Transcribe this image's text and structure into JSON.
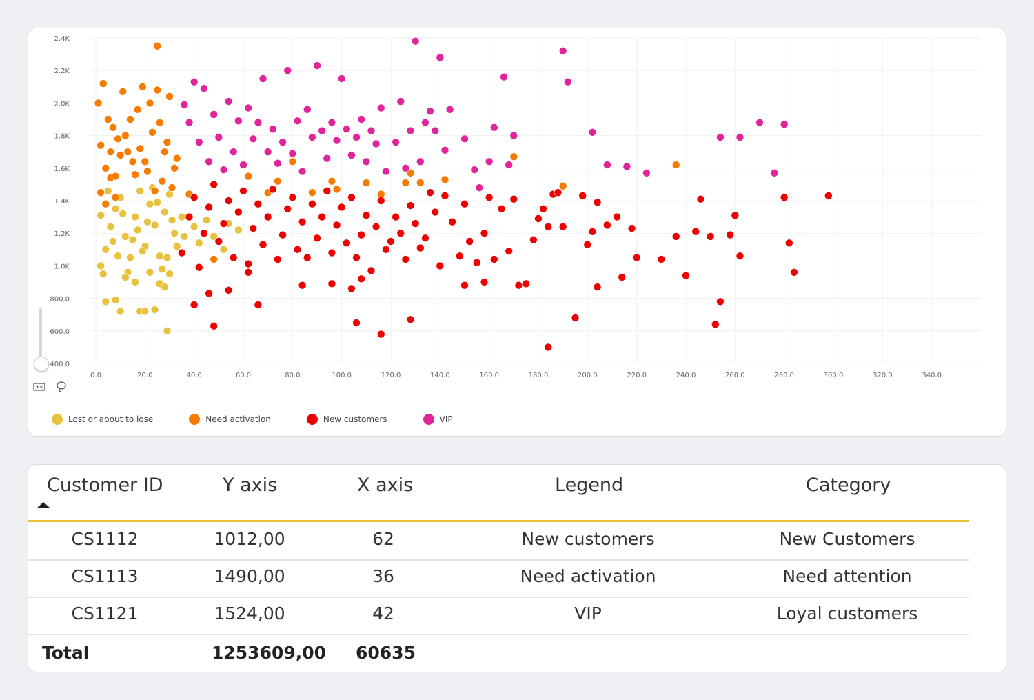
{
  "colors": {
    "lost": "#e8c13f",
    "need_activation": "#f57c00",
    "new_customers": "#ee0000",
    "vip": "#e0249a",
    "accent": "#e8be37"
  },
  "chart": {
    "zoom_icon": "zoom-to-fit-icon",
    "lasso_icon": "lasso-select-icon"
  },
  "chart_data": {
    "type": "scatter",
    "xlim": [
      0,
      360
    ],
    "ylim": [
      400,
      2400
    ],
    "x_ticks": [
      "0.0",
      "20.0",
      "40.0",
      "60.0",
      "80.0",
      "100.0",
      "120.0",
      "140.0",
      "160.0",
      "180.0",
      "200.0",
      "220.0",
      "240.0",
      "260.0",
      "280.0",
      "300.0",
      "320.0",
      "340.0"
    ],
    "y_ticks": [
      "400.0",
      "600.0",
      "800.0",
      "1.0K",
      "1.2K",
      "1.4K",
      "1.6K",
      "1.8K",
      "2.0K",
      "2.2K",
      "2.4K"
    ],
    "legend_position": "bottom-left",
    "grid": true,
    "series": [
      {
        "name": "Lost or about to lose",
        "color_key": "lost",
        "points": [
          [
            2,
            1000
          ],
          [
            4,
            1100
          ],
          [
            6,
            1240
          ],
          [
            8,
            1350
          ],
          [
            10,
            1420
          ],
          [
            12,
            1180
          ],
          [
            14,
            1050
          ],
          [
            16,
            1300
          ],
          [
            18,
            1460
          ],
          [
            20,
            1120
          ],
          [
            22,
            1380
          ],
          [
            24,
            1250
          ],
          [
            26,
            1060
          ],
          [
            28,
            1330
          ],
          [
            30,
            1440
          ],
          [
            32,
            1200
          ],
          [
            3,
            950
          ],
          [
            9,
            1060
          ],
          [
            15,
            1160
          ],
          [
            21,
            1270
          ],
          [
            27,
            980
          ],
          [
            33,
            1120
          ],
          [
            5,
            1460
          ],
          [
            11,
            1320
          ],
          [
            17,
            1220
          ],
          [
            23,
            1480
          ],
          [
            29,
            1050
          ],
          [
            35,
            1300
          ],
          [
            7,
            1150
          ],
          [
            13,
            960
          ],
          [
            19,
            1090
          ],
          [
            25,
            1390
          ],
          [
            31,
            1280
          ],
          [
            36,
            1180
          ],
          [
            2,
            1310
          ],
          [
            4,
            780
          ],
          [
            8,
            790
          ],
          [
            10,
            720
          ],
          [
            18,
            720
          ],
          [
            20,
            720
          ],
          [
            24,
            730
          ],
          [
            29,
            600
          ],
          [
            16,
            900
          ],
          [
            12,
            930
          ],
          [
            22,
            960
          ],
          [
            26,
            890
          ],
          [
            28,
            870
          ],
          [
            30,
            950
          ],
          [
            40,
            1240
          ],
          [
            44,
            1200
          ],
          [
            48,
            1180
          ],
          [
            50,
            1150
          ],
          [
            52,
            1100
          ],
          [
            54,
            1260
          ],
          [
            58,
            1220
          ],
          [
            45,
            1280
          ],
          [
            42,
            1140
          ]
        ]
      },
      {
        "name": "Need activation",
        "color_key": "need_activation",
        "points": [
          [
            1,
            2000
          ],
          [
            3,
            2120
          ],
          [
            5,
            1900
          ],
          [
            7,
            1850
          ],
          [
            9,
            1780
          ],
          [
            11,
            2070
          ],
          [
            13,
            1700
          ],
          [
            15,
            1640
          ],
          [
            17,
            1960
          ],
          [
            19,
            2100
          ],
          [
            21,
            1580
          ],
          [
            23,
            1820
          ],
          [
            25,
            2080
          ],
          [
            27,
            1520
          ],
          [
            29,
            1760
          ],
          [
            31,
            1480
          ],
          [
            33,
            1660
          ],
          [
            2,
            1740
          ],
          [
            4,
            1600
          ],
          [
            6,
            1540
          ],
          [
            8,
            1420
          ],
          [
            10,
            1680
          ],
          [
            12,
            1800
          ],
          [
            14,
            1900
          ],
          [
            16,
            1560
          ],
          [
            18,
            1720
          ],
          [
            20,
            1640
          ],
          [
            22,
            2000
          ],
          [
            24,
            1460
          ],
          [
            26,
            1880
          ],
          [
            28,
            1700
          ],
          [
            30,
            2040
          ],
          [
            32,
            1600
          ],
          [
            2,
            1450
          ],
          [
            4,
            1380
          ],
          [
            6,
            1700
          ],
          [
            8,
            1550
          ],
          [
            25,
            2350
          ],
          [
            62,
            1550
          ],
          [
            70,
            1450
          ],
          [
            74,
            1520
          ],
          [
            80,
            1640
          ],
          [
            88,
            1450
          ],
          [
            96,
            1520
          ],
          [
            98,
            1470
          ],
          [
            110,
            1510
          ],
          [
            116,
            1440
          ],
          [
            126,
            1510
          ],
          [
            128,
            1570
          ],
          [
            132,
            1510
          ],
          [
            142,
            1530
          ],
          [
            170,
            1670
          ],
          [
            190,
            1490
          ],
          [
            236,
            1620
          ],
          [
            48,
            1040
          ],
          [
            38,
            1440
          ]
        ]
      },
      {
        "name": "New customers",
        "color_key": "new_customers",
        "points": [
          [
            35,
            1080
          ],
          [
            38,
            1300
          ],
          [
            40,
            1420
          ],
          [
            42,
            990
          ],
          [
            44,
            1200
          ],
          [
            46,
            1360
          ],
          [
            48,
            1500
          ],
          [
            50,
            1150
          ],
          [
            52,
            1260
          ],
          [
            54,
            1400
          ],
          [
            56,
            1050
          ],
          [
            58,
            1330
          ],
          [
            60,
            1460
          ],
          [
            62,
            1012
          ],
          [
            64,
            1230
          ],
          [
            66,
            1380
          ],
          [
            68,
            1130
          ],
          [
            70,
            1300
          ],
          [
            72,
            1470
          ],
          [
            74,
            1040
          ],
          [
            76,
            1190
          ],
          [
            78,
            1350
          ],
          [
            80,
            1420
          ],
          [
            82,
            1100
          ],
          [
            84,
            1270
          ],
          [
            86,
            1050
          ],
          [
            88,
            1380
          ],
          [
            90,
            1170
          ],
          [
            92,
            1300
          ],
          [
            94,
            1460
          ],
          [
            96,
            1080
          ],
          [
            98,
            1250
          ],
          [
            100,
            1360
          ],
          [
            102,
            1140
          ],
          [
            104,
            1420
          ],
          [
            106,
            1050
          ],
          [
            108,
            1190
          ],
          [
            110,
            1310
          ],
          [
            112,
            970
          ],
          [
            114,
            1240
          ],
          [
            116,
            1400
          ],
          [
            118,
            1100
          ],
          [
            120,
            1150
          ],
          [
            122,
            1300
          ],
          [
            124,
            1200
          ],
          [
            126,
            1040
          ],
          [
            128,
            1370
          ],
          [
            130,
            1260
          ],
          [
            132,
            1110
          ],
          [
            134,
            1170
          ],
          [
            136,
            1450
          ],
          [
            138,
            1330
          ],
          [
            140,
            1000
          ],
          [
            142,
            1430
          ],
          [
            145,
            1270
          ],
          [
            148,
            1060
          ],
          [
            150,
            1380
          ],
          [
            152,
            1150
          ],
          [
            155,
            1020
          ],
          [
            158,
            1200
          ],
          [
            160,
            1420
          ],
          [
            162,
            1040
          ],
          [
            165,
            1350
          ],
          [
            168,
            1090
          ],
          [
            170,
            1410
          ],
          [
            172,
            880
          ],
          [
            175,
            890
          ],
          [
            178,
            1160
          ],
          [
            180,
            1290
          ],
          [
            182,
            1350
          ],
          [
            184,
            1240
          ],
          [
            186,
            1440
          ],
          [
            188,
            1450
          ],
          [
            190,
            1240
          ],
          [
            195,
            680
          ],
          [
            198,
            1430
          ],
          [
            200,
            1130
          ],
          [
            202,
            1210
          ],
          [
            204,
            1390
          ],
          [
            208,
            1250
          ],
          [
            212,
            1300
          ],
          [
            214,
            930
          ],
          [
            218,
            1230
          ],
          [
            220,
            1050
          ],
          [
            230,
            1040
          ],
          [
            236,
            1180
          ],
          [
            240,
            940
          ],
          [
            244,
            1210
          ],
          [
            246,
            1410
          ],
          [
            250,
            1180
          ],
          [
            252,
            640
          ],
          [
            254,
            780
          ],
          [
            258,
            1190
          ],
          [
            260,
            1310
          ],
          [
            262,
            1060
          ],
          [
            48,
            630
          ],
          [
            66,
            760
          ],
          [
            106,
            650
          ],
          [
            116,
            580
          ],
          [
            128,
            670
          ],
          [
            184,
            500
          ],
          [
            204,
            870
          ],
          [
            40,
            760
          ],
          [
            46,
            830
          ],
          [
            54,
            850
          ],
          [
            62,
            960
          ],
          [
            84,
            880
          ],
          [
            96,
            890
          ],
          [
            104,
            860
          ],
          [
            108,
            920
          ],
          [
            150,
            880
          ],
          [
            158,
            900
          ],
          [
            280,
            1420
          ],
          [
            282,
            1140
          ],
          [
            284,
            960
          ],
          [
            298,
            1430
          ]
        ]
      },
      {
        "name": "VIP",
        "color_key": "vip",
        "points": [
          [
            36,
            1990
          ],
          [
            38,
            1880
          ],
          [
            40,
            2130
          ],
          [
            42,
            1760
          ],
          [
            44,
            2090
          ],
          [
            46,
            1640
          ],
          [
            48,
            1930
          ],
          [
            50,
            1790
          ],
          [
            52,
            1590
          ],
          [
            54,
            2010
          ],
          [
            56,
            1700
          ],
          [
            58,
            1890
          ],
          [
            60,
            1620
          ],
          [
            62,
            1970
          ],
          [
            64,
            1780
          ],
          [
            66,
            1880
          ],
          [
            68,
            2150
          ],
          [
            70,
            1700
          ],
          [
            72,
            1840
          ],
          [
            74,
            1630
          ],
          [
            76,
            1760
          ],
          [
            78,
            2200
          ],
          [
            80,
            1690
          ],
          [
            82,
            1890
          ],
          [
            84,
            1580
          ],
          [
            86,
            1960
          ],
          [
            88,
            1790
          ],
          [
            90,
            2230
          ],
          [
            92,
            1830
          ],
          [
            94,
            1660
          ],
          [
            96,
            1880
          ],
          [
            98,
            1770
          ],
          [
            100,
            2150
          ],
          [
            102,
            1840
          ],
          [
            104,
            1680
          ],
          [
            106,
            1790
          ],
          [
            108,
            1900
          ],
          [
            110,
            1640
          ],
          [
            112,
            1830
          ],
          [
            114,
            1750
          ],
          [
            116,
            1970
          ],
          [
            118,
            1580
          ],
          [
            122,
            1760
          ],
          [
            124,
            2010
          ],
          [
            126,
            1600
          ],
          [
            128,
            1830
          ],
          [
            130,
            2380
          ],
          [
            132,
            1640
          ],
          [
            134,
            1880
          ],
          [
            136,
            1950
          ],
          [
            138,
            1830
          ],
          [
            140,
            2280
          ],
          [
            142,
            1710
          ],
          [
            144,
            1960
          ],
          [
            150,
            1780
          ],
          [
            154,
            1590
          ],
          [
            156,
            1480
          ],
          [
            160,
            1640
          ],
          [
            162,
            1850
          ],
          [
            166,
            2160
          ],
          [
            168,
            1620
          ],
          [
            170,
            1800
          ],
          [
            190,
            2320
          ],
          [
            192,
            2130
          ],
          [
            202,
            1820
          ],
          [
            208,
            1620
          ],
          [
            216,
            1610
          ],
          [
            224,
            1570
          ],
          [
            254,
            1790
          ],
          [
            262,
            1790
          ],
          [
            270,
            1880
          ],
          [
            276,
            1570
          ],
          [
            280,
            1870
          ]
        ]
      }
    ]
  },
  "table": {
    "columns": [
      "Customer ID",
      "Y axis",
      "X axis",
      "Legend",
      "Category"
    ],
    "rows": [
      [
        "CS1112",
        "1012,00",
        "62",
        "New customers",
        "New Customers"
      ],
      [
        "CS1113",
        "1490,00",
        "36",
        "Need activation",
        "Need attention"
      ],
      [
        "CS1121",
        "1524,00",
        "42",
        "VIP",
        "Loyal customers"
      ]
    ],
    "total_label": "Total",
    "total_y": "1253609,00",
    "total_x": "60635"
  }
}
